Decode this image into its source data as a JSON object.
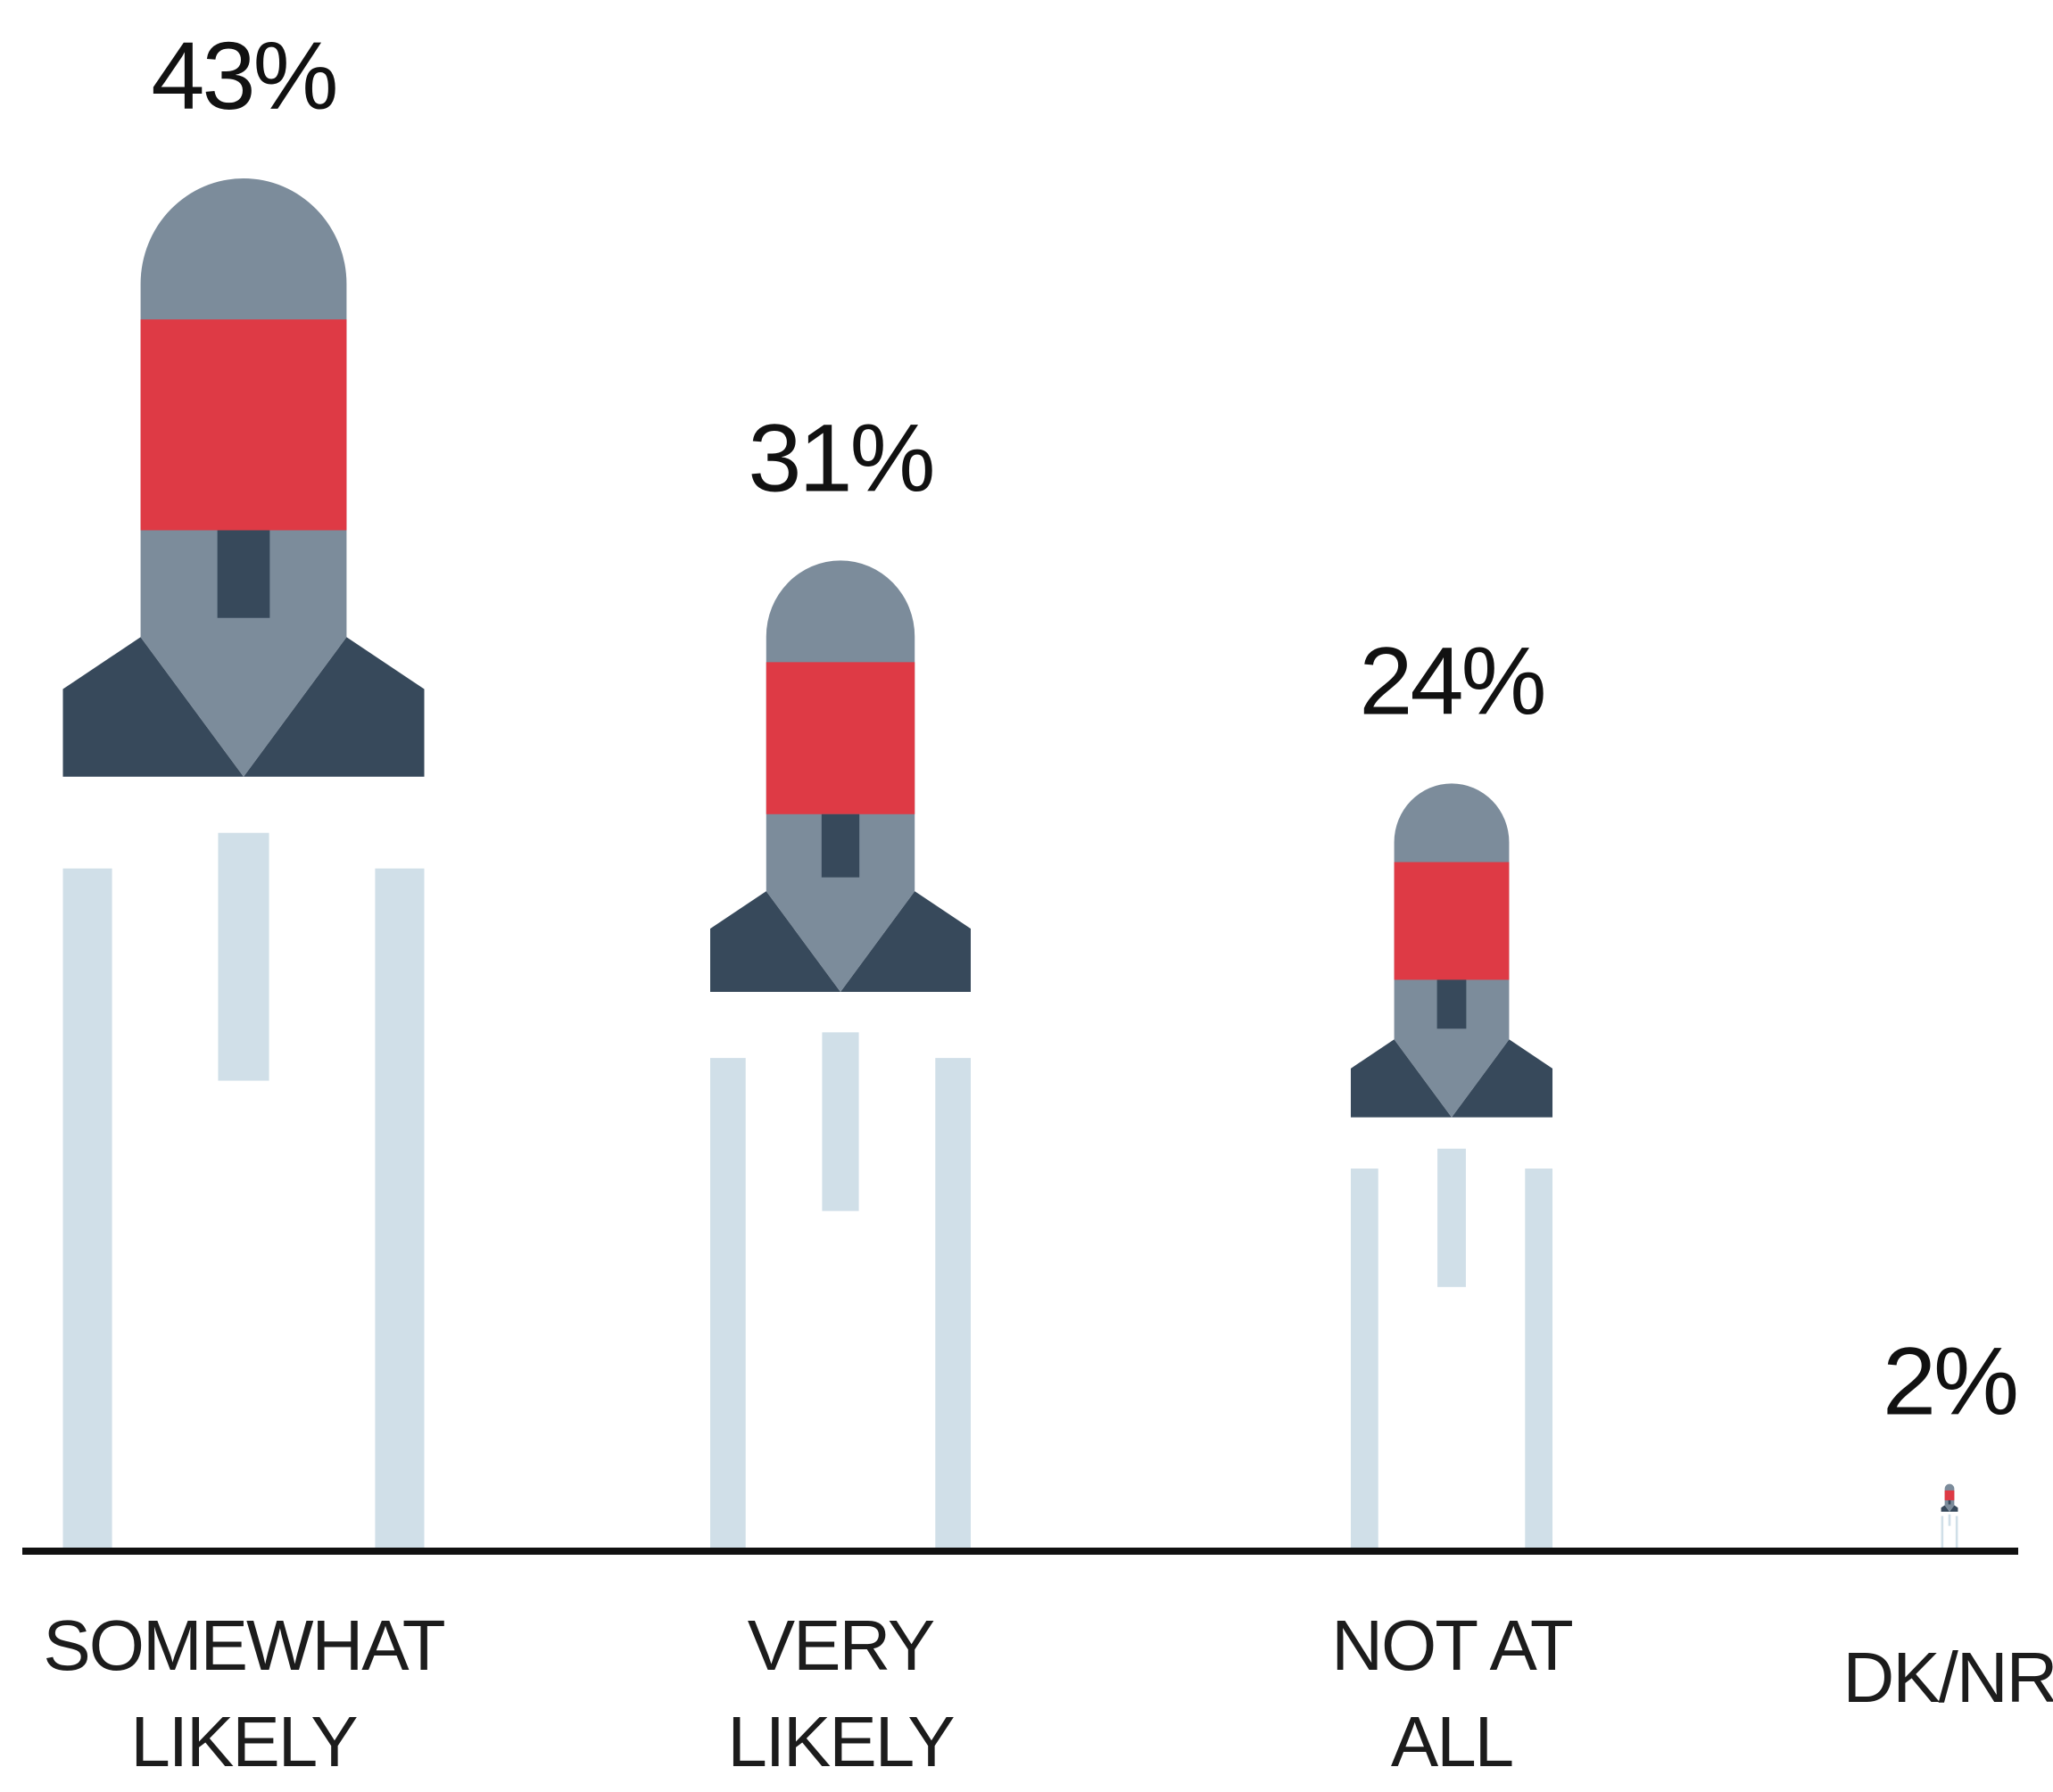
{
  "chart_data": {
    "type": "bar",
    "title": "",
    "xlabel": "",
    "ylabel": "",
    "categories": [
      [
        "SOMEWHAT",
        "LIKELY"
      ],
      [
        "VERY",
        "LIKELY"
      ],
      [
        "NOT AT",
        "ALL"
      ],
      [
        "DK/NR"
      ]
    ],
    "values": [
      43,
      31,
      24,
      2
    ],
    "value_labels": [
      "43%",
      "31%",
      "24%",
      "2%"
    ],
    "unit": "%",
    "mark_style": "rocket",
    "grid": false,
    "legend": "none"
  },
  "colors": {
    "rocket_body": "#7c8c9b",
    "rocket_band": "#de3a45",
    "rocket_fins": "#37495b",
    "exhaust": "#d0dfe8",
    "baseline": "#111111",
    "text": "#111111"
  }
}
